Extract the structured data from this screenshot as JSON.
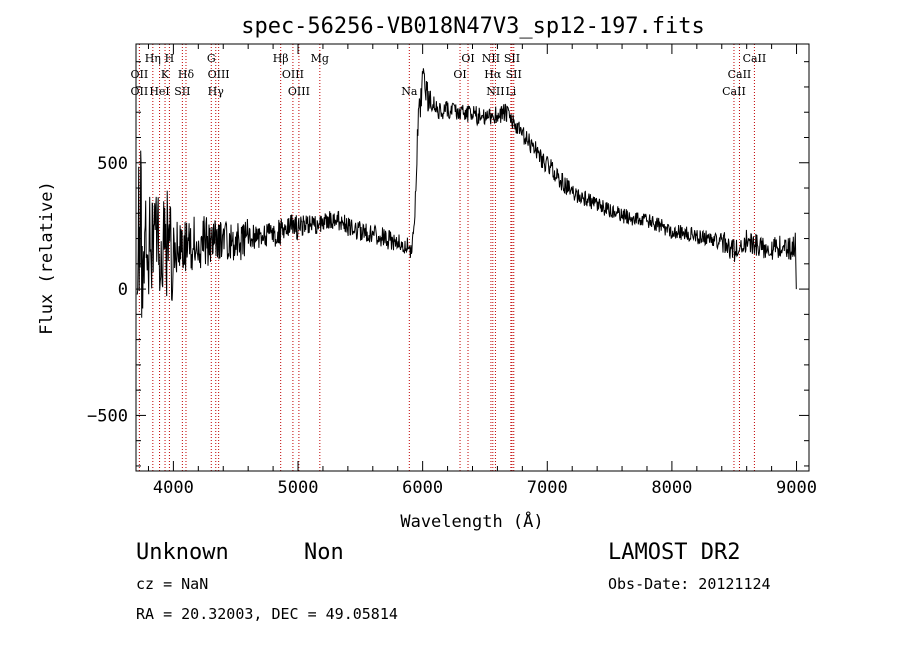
{
  "chart_data": {
    "type": "line",
    "title": "spec-56256-VB018N47V3_sp12-197.fits",
    "xlabel": "Wavelength (Å)",
    "ylabel": "Flux (relative)",
    "xlim": [
      3700,
      9100
    ],
    "ylim": [
      -720,
      970
    ],
    "xticks": [
      4000,
      5000,
      6000,
      7000,
      8000,
      9000
    ],
    "xtick_labels": [
      "4000",
      "5000",
      "6000",
      "7000",
      "8000",
      "9000"
    ],
    "xticks_minor": [
      3800,
      4200,
      4400,
      4600,
      4800,
      5200,
      5400,
      5600,
      5800,
      6200,
      6400,
      6600,
      6800,
      7200,
      7400,
      7600,
      7800,
      8200,
      8400,
      8600,
      8800
    ],
    "yticks": [
      -500,
      0,
      500
    ],
    "ytick_labels": [
      "−500",
      "0",
      "500"
    ],
    "yticks_minor": [
      -700,
      -600,
      -400,
      -300,
      -200,
      -100,
      100,
      200,
      300,
      400,
      600,
      700,
      800,
      900
    ],
    "grid": false,
    "series": [
      {
        "color": "#000000",
        "anchors": [
          [
            3710,
            150
          ],
          [
            3730,
            300
          ],
          [
            3750,
            180
          ],
          [
            3800,
            150
          ],
          [
            3850,
            200
          ],
          [
            3900,
            120
          ],
          [
            3950,
            180
          ],
          [
            4000,
            150
          ],
          [
            4050,
            160
          ],
          [
            4100,
            170
          ],
          [
            4150,
            180
          ],
          [
            4200,
            190
          ],
          [
            4300,
            200
          ],
          [
            4400,
            195
          ],
          [
            4500,
            190
          ],
          [
            4600,
            200
          ],
          [
            4700,
            205
          ],
          [
            4800,
            210
          ],
          [
            4850,
            225
          ],
          [
            4900,
            240
          ],
          [
            5000,
            250
          ],
          [
            5100,
            255
          ],
          [
            5200,
            260
          ],
          [
            5300,
            280
          ],
          [
            5400,
            250
          ],
          [
            5500,
            230
          ],
          [
            5600,
            220
          ],
          [
            5700,
            200
          ],
          [
            5800,
            180
          ],
          [
            5900,
            160
          ],
          [
            5910,
            170
          ],
          [
            5940,
            300
          ],
          [
            5960,
            650
          ],
          [
            5990,
            760
          ],
          [
            6000,
            850
          ],
          [
            6050,
            740
          ],
          [
            6100,
            720
          ],
          [
            6150,
            700
          ],
          [
            6200,
            710
          ],
          [
            6300,
            700
          ],
          [
            6400,
            690
          ],
          [
            6500,
            680
          ],
          [
            6600,
            690
          ],
          [
            6650,
            700
          ],
          [
            6700,
            680
          ],
          [
            6750,
            640
          ],
          [
            6800,
            610
          ],
          [
            6850,
            580
          ],
          [
            6900,
            560
          ],
          [
            6950,
            520
          ],
          [
            7000,
            490
          ],
          [
            7050,
            470
          ],
          [
            7100,
            430
          ],
          [
            7150,
            410
          ],
          [
            7200,
            380
          ],
          [
            7300,
            360
          ],
          [
            7400,
            330
          ],
          [
            7500,
            310
          ],
          [
            7600,
            290
          ],
          [
            7700,
            280
          ],
          [
            7800,
            270
          ],
          [
            7900,
            250
          ],
          [
            8000,
            230
          ],
          [
            8100,
            220
          ],
          [
            8200,
            210
          ],
          [
            8300,
            200
          ],
          [
            8400,
            190
          ],
          [
            8450,
            170
          ],
          [
            8500,
            150
          ],
          [
            8550,
            170
          ],
          [
            8600,
            190
          ],
          [
            8700,
            170
          ],
          [
            8800,
            160
          ],
          [
            8900,
            170
          ],
          [
            8950,
            160
          ],
          [
            8990,
            180
          ],
          [
            9000,
            0
          ]
        ]
      }
    ],
    "spectral_lines": [
      {
        "label": "Hη",
        "wavelengths": [
          3835
        ],
        "row": 1
      },
      {
        "label": "H",
        "wavelengths": [
          3968
        ],
        "row": 1
      },
      {
        "label": "K",
        "wavelengths": [
          3933
        ],
        "row": 2
      },
      {
        "label": "OII",
        "wavelengths": [
          3727
        ],
        "row": 2
      },
      {
        "label": "Hδ",
        "wavelengths": [
          4101
        ],
        "row": 2
      },
      {
        "label": "OII",
        "wavelengths": [
          3727
        ],
        "row": 3
      },
      {
        "label": "HeI",
        "wavelengths": [
          3889
        ],
        "row": 3
      },
      {
        "label": "SII",
        "wavelengths": [
          4072
        ],
        "row": 3
      },
      {
        "label": "G",
        "wavelengths": [
          4304
        ],
        "row": 1
      },
      {
        "label": "OIII",
        "wavelengths": [
          4363
        ],
        "row": 2
      },
      {
        "label": "Hγ",
        "wavelengths": [
          4340
        ],
        "row": 3
      },
      {
        "label": "Hβ",
        "wavelengths": [
          4861
        ],
        "row": 1
      },
      {
        "label": "Mg",
        "wavelengths": [
          5175
        ],
        "row": 1
      },
      {
        "label": "OIII",
        "wavelengths": [
          4959
        ],
        "row": 2
      },
      {
        "label": "OIII",
        "wavelengths": [
          5007
        ],
        "row": 3
      },
      {
        "label": "Na",
        "wavelengths": [
          5893
        ],
        "row": 3
      },
      {
        "label": "OI",
        "wavelengths": [
          6364
        ],
        "row": 1
      },
      {
        "label": "OI",
        "wavelengths": [
          6300
        ],
        "row": 2
      },
      {
        "label": "NII",
        "wavelengths": [
          6548
        ],
        "row": 1
      },
      {
        "label": "SII",
        "wavelengths": [
          6717
        ],
        "row": 1
      },
      {
        "label": "Hα",
        "wavelengths": [
          6563
        ],
        "row": 2
      },
      {
        "label": "SII",
        "wavelengths": [
          6731
        ],
        "row": 2
      },
      {
        "label": "NII",
        "wavelengths": [
          6584
        ],
        "row": 3
      },
      {
        "label": "Li",
        "wavelengths": [
          6708
        ],
        "row": 3
      },
      {
        "label": "CaII",
        "wavelengths": [
          8662
        ],
        "row": 1
      },
      {
        "label": "CaII",
        "wavelengths": [
          8542
        ],
        "row": 2
      },
      {
        "label": "CaII",
        "wavelengths": [
          8498
        ],
        "row": 3
      }
    ]
  },
  "info": {
    "classification": "Unknown",
    "subclass": "Non",
    "survey": "LAMOST DR2",
    "cz": "cz = NaN",
    "obs_date": "Obs-Date: 20121124",
    "coords": "RA =  20.32003, DEC =  49.05814"
  }
}
